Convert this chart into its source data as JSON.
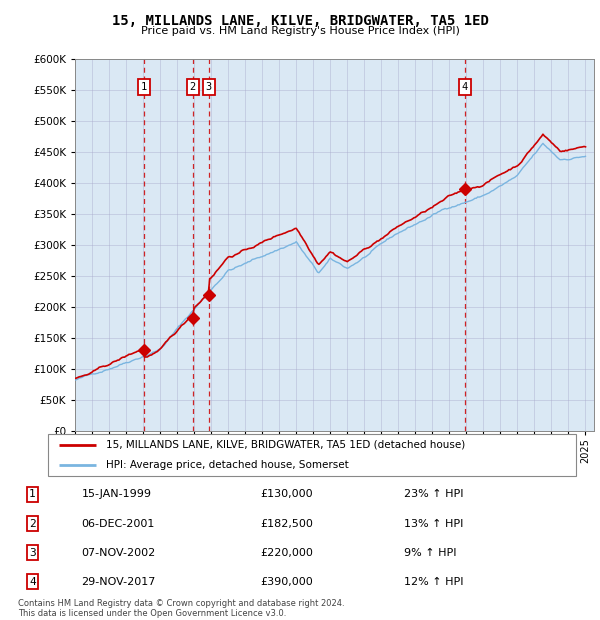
{
  "title": "15, MILLANDS LANE, KILVE, BRIDGWATER, TA5 1ED",
  "subtitle": "Price paid vs. HM Land Registry's House Price Index (HPI)",
  "legend_line1": "15, MILLANDS LANE, KILVE, BRIDGWATER, TA5 1ED (detached house)",
  "legend_line2": "HPI: Average price, detached house, Somerset",
  "footer1": "Contains HM Land Registry data © Crown copyright and database right 2024.",
  "footer2": "This data is licensed under the Open Government Licence v3.0.",
  "sales": [
    {
      "num": 1,
      "date_label": "15-JAN-1999",
      "year": 1999.04,
      "price": 130000,
      "pct": "23% ↑ HPI"
    },
    {
      "num": 2,
      "date_label": "06-DEC-2001",
      "year": 2001.92,
      "price": 182500,
      "pct": "13% ↑ HPI"
    },
    {
      "num": 3,
      "date_label": "07-NOV-2002",
      "year": 2002.85,
      "price": 220000,
      "pct": "9% ↑ HPI"
    },
    {
      "num": 4,
      "date_label": "29-NOV-2017",
      "year": 2017.91,
      "price": 390000,
      "pct": "12% ↑ HPI"
    }
  ],
  "hpi_color": "#7ab5e0",
  "price_color": "#cc0000",
  "ylim": [
    0,
    600000
  ],
  "yticks": [
    0,
    50000,
    100000,
    150000,
    200000,
    250000,
    300000,
    350000,
    400000,
    450000,
    500000,
    550000,
    600000
  ],
  "xlim": [
    1995,
    2025.5
  ],
  "background_color": "#dae8f4",
  "chart_bg": "#dae8f4"
}
